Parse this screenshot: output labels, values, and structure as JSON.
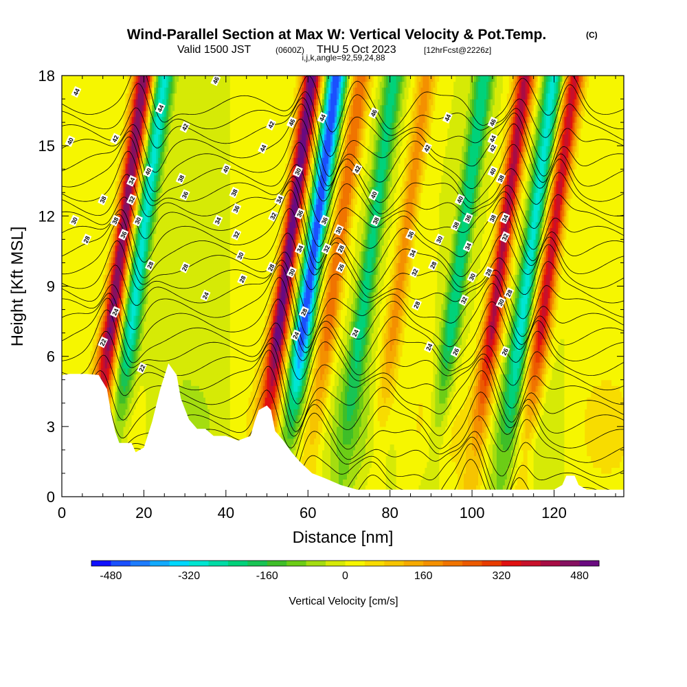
{
  "title": {
    "main": "Wind-Parallel Section at Max W: Vertical Velocity & Pot.Temp.",
    "copyright": "(C)",
    "valid_prefix": "Valid 1500 JST",
    "valid_utc": "(0600Z)",
    "valid_date": "THU 5 Oct 2023",
    "forecast": "[12hrFcst@2226z]",
    "indices": "i,j,k,angle=92,59,24,88"
  },
  "chart_data": {
    "type": "heatmap",
    "title": "Wind-Parallel Section at Max W: Vertical Velocity & Pot.Temp.",
    "xlabel": "Distance [nm]",
    "ylabel": "Height [Kft MSL]",
    "xlim": [
      0,
      137
    ],
    "ylim": [
      0,
      18
    ],
    "x_ticks": [
      0,
      20,
      40,
      60,
      80,
      100,
      120
    ],
    "y_ticks": [
      0,
      3,
      6,
      9,
      12,
      15,
      18
    ],
    "colorbar": {
      "label": "Vertical Velocity [cm/s]",
      "min": -520,
      "max": 520,
      "step": 40,
      "tick_values": [
        -480,
        -320,
        -160,
        0,
        160,
        320,
        480
      ],
      "colors": [
        "#1010ff",
        "#1a50ff",
        "#1e7cff",
        "#12aaff",
        "#00d8ff",
        "#00e6d2",
        "#00dca6",
        "#00d27a",
        "#18c454",
        "#3fbe28",
        "#6ccd16",
        "#a4dd10",
        "#d6ea06",
        "#f6f600",
        "#f8dc00",
        "#f6c400",
        "#f6aa00",
        "#f49000",
        "#f07400",
        "#ec5a00",
        "#e83c00",
        "#e01010",
        "#c8102a",
        "#a80c44",
        "#861060",
        "#6a0a80"
      ]
    },
    "terrain_kft": [
      [
        0,
        5.2
      ],
      [
        2,
        5.25
      ],
      [
        6,
        5.25
      ],
      [
        9,
        5.2
      ],
      [
        11,
        4.6
      ],
      [
        12,
        3.6
      ],
      [
        13,
        2.8
      ],
      [
        14,
        2.3
      ],
      [
        17,
        2.3
      ],
      [
        18,
        1.9
      ],
      [
        20,
        2.1
      ],
      [
        22,
        3.2
      ],
      [
        24,
        4.6
      ],
      [
        26,
        5.7
      ],
      [
        28,
        5.2
      ],
      [
        29,
        4.2
      ],
      [
        31,
        3.3
      ],
      [
        33,
        2.9
      ],
      [
        35,
        2.9
      ],
      [
        37,
        2.6
      ],
      [
        40,
        2.6
      ],
      [
        43,
        2.4
      ],
      [
        46,
        2.6
      ],
      [
        47,
        3.2
      ],
      [
        48,
        3.7
      ],
      [
        50,
        3.9
      ],
      [
        51,
        3.7
      ],
      [
        52,
        2.8
      ],
      [
        54,
        2.4
      ],
      [
        56,
        1.9
      ],
      [
        58,
        1.5
      ],
      [
        61,
        1.0
      ],
      [
        64,
        0.8
      ],
      [
        68,
        0.5
      ],
      [
        72,
        0.3
      ],
      [
        120,
        0.3
      ],
      [
        122,
        0.5
      ],
      [
        123,
        0.9
      ],
      [
        125,
        0.9
      ],
      [
        126,
        0.5
      ],
      [
        128,
        0.3
      ],
      [
        137,
        0.3
      ]
    ],
    "updraft_cores": [
      {
        "x": 14,
        "amplitude": 480
      },
      {
        "x": 55,
        "amplitude": 520
      },
      {
        "x": 67,
        "amplitude": 240
      },
      {
        "x": 83,
        "amplitude": 180
      },
      {
        "x": 107,
        "amplitude": 420
      },
      {
        "x": 119,
        "amplitude": 380
      }
    ],
    "downdraft_cores": [
      {
        "x": 19,
        "amplitude": -300
      },
      {
        "x": 61,
        "amplitude": -480
      },
      {
        "x": 75,
        "amplitude": -220
      },
      {
        "x": 97,
        "amplitude": -240
      },
      {
        "x": 114,
        "amplitude": -300
      }
    ],
    "theta_contour_levels": [
      22,
      24,
      26,
      28,
      30,
      32,
      34,
      36,
      38,
      40,
      42,
      44,
      46
    ],
    "contour_labels": [
      {
        "text": "44",
        "x": 3.5,
        "y": 17.3
      },
      {
        "text": "40",
        "x": 2,
        "y": 15.2
      },
      {
        "text": "30",
        "x": 3,
        "y": 11.8
      },
      {
        "text": "28",
        "x": 6,
        "y": 11.0
      },
      {
        "text": "38",
        "x": 10,
        "y": 12.7
      },
      {
        "text": "42",
        "x": 13,
        "y": 15.3
      },
      {
        "text": "38",
        "x": 13,
        "y": 11.8
      },
      {
        "text": "34",
        "x": 17,
        "y": 13.5
      },
      {
        "text": "32",
        "x": 17,
        "y": 12.7
      },
      {
        "text": "36",
        "x": 15,
        "y": 11.2
      },
      {
        "text": "30",
        "x": 18.5,
        "y": 11.8
      },
      {
        "text": "40",
        "x": 21,
        "y": 13.9
      },
      {
        "text": "44",
        "x": 24,
        "y": 16.6
      },
      {
        "text": "42",
        "x": 30,
        "y": 15.8
      },
      {
        "text": "38",
        "x": 29,
        "y": 13.6
      },
      {
        "text": "36",
        "x": 30,
        "y": 12.9
      },
      {
        "text": "28",
        "x": 21.5,
        "y": 9.9
      },
      {
        "text": "28",
        "x": 30,
        "y": 9.8
      },
      {
        "text": "24",
        "x": 13,
        "y": 7.9
      },
      {
        "text": "22",
        "x": 10,
        "y": 6.6
      },
      {
        "text": "22",
        "x": 19.5,
        "y": 5.5
      },
      {
        "text": "24",
        "x": 35,
        "y": 8.6
      },
      {
        "text": "34",
        "x": 38,
        "y": 11.8
      },
      {
        "text": "40",
        "x": 40,
        "y": 14.0
      },
      {
        "text": "38",
        "x": 42,
        "y": 13.0
      },
      {
        "text": "36",
        "x": 42.5,
        "y": 12.3
      },
      {
        "text": "32",
        "x": 42.5,
        "y": 11.2
      },
      {
        "text": "30",
        "x": 43.5,
        "y": 10.3
      },
      {
        "text": "28",
        "x": 44,
        "y": 9.3
      },
      {
        "text": "46",
        "x": 37.5,
        "y": 17.8
      },
      {
        "text": "44",
        "x": 49,
        "y": 14.9
      },
      {
        "text": "42",
        "x": 51,
        "y": 15.9
      },
      {
        "text": "34",
        "x": 53,
        "y": 12.7
      },
      {
        "text": "32",
        "x": 51.5,
        "y": 12.0
      },
      {
        "text": "28",
        "x": 51,
        "y": 9.8
      },
      {
        "text": "46",
        "x": 56,
        "y": 16.0
      },
      {
        "text": "30",
        "x": 57.5,
        "y": 13.9
      },
      {
        "text": "36",
        "x": 58,
        "y": 12.1
      },
      {
        "text": "34",
        "x": 58,
        "y": 10.6
      },
      {
        "text": "30",
        "x": 56,
        "y": 9.6
      },
      {
        "text": "28",
        "x": 59,
        "y": 7.9
      },
      {
        "text": "24",
        "x": 57,
        "y": 6.9
      },
      {
        "text": "44",
        "x": 63.5,
        "y": 16.2
      },
      {
        "text": "36",
        "x": 64,
        "y": 11.8
      },
      {
        "text": "32",
        "x": 64.5,
        "y": 10.6
      },
      {
        "text": "30",
        "x": 67.5,
        "y": 11.4
      },
      {
        "text": "28",
        "x": 68,
        "y": 10.6
      },
      {
        "text": "26",
        "x": 68,
        "y": 9.8
      },
      {
        "text": "24",
        "x": 71.5,
        "y": 7.0
      },
      {
        "text": "42",
        "x": 72,
        "y": 14.0
      },
      {
        "text": "46",
        "x": 76,
        "y": 16.4
      },
      {
        "text": "40",
        "x": 76,
        "y": 12.9
      },
      {
        "text": "38",
        "x": 76.5,
        "y": 11.8
      },
      {
        "text": "44",
        "x": 94,
        "y": 16.2
      },
      {
        "text": "42",
        "x": 89,
        "y": 14.9
      },
      {
        "text": "36",
        "x": 85,
        "y": 11.2
      },
      {
        "text": "34",
        "x": 85.5,
        "y": 10.4
      },
      {
        "text": "32",
        "x": 86,
        "y": 9.6
      },
      {
        "text": "28",
        "x": 90.5,
        "y": 9.9
      },
      {
        "text": "30",
        "x": 92,
        "y": 11.0
      },
      {
        "text": "28",
        "x": 86.5,
        "y": 8.2
      },
      {
        "text": "24",
        "x": 89.5,
        "y": 6.4
      },
      {
        "text": "26",
        "x": 96,
        "y": 6.2
      },
      {
        "text": "40",
        "x": 97,
        "y": 12.7
      },
      {
        "text": "38",
        "x": 96,
        "y": 11.6
      },
      {
        "text": "36",
        "x": 99,
        "y": 11.9
      },
      {
        "text": "34",
        "x": 99,
        "y": 10.7
      },
      {
        "text": "30",
        "x": 100,
        "y": 9.4
      },
      {
        "text": "32",
        "x": 98,
        "y": 8.4
      },
      {
        "text": "28",
        "x": 104,
        "y": 9.6
      },
      {
        "text": "46",
        "x": 105,
        "y": 16.0
      },
      {
        "text": "44",
        "x": 105,
        "y": 15.3
      },
      {
        "text": "42",
        "x": 105,
        "y": 14.9
      },
      {
        "text": "40",
        "x": 105,
        "y": 13.9
      },
      {
        "text": "38",
        "x": 105,
        "y": 11.9
      },
      {
        "text": "38",
        "x": 107,
        "y": 13.6
      },
      {
        "text": "34",
        "x": 108,
        "y": 11.9
      },
      {
        "text": "32",
        "x": 108,
        "y": 11.1
      },
      {
        "text": "30",
        "x": 107,
        "y": 8.3
      },
      {
        "text": "28",
        "x": 109,
        "y": 8.7
      },
      {
        "text": "26",
        "x": 108,
        "y": 6.2
      }
    ]
  },
  "x_axis": {
    "label": "Distance [nm]",
    "ticks": [
      "0",
      "20",
      "40",
      "60",
      "80",
      "100",
      "120"
    ]
  },
  "y_axis": {
    "label": "Height [Kft MSL]",
    "ticks": [
      "0",
      "3",
      "6",
      "9",
      "12",
      "15",
      "18"
    ]
  },
  "colorbar": {
    "title": "Vertical Velocity [cm/s]",
    "tick_labels": [
      "-480",
      "-320",
      "-160",
      "0",
      "160",
      "320",
      "480"
    ]
  }
}
